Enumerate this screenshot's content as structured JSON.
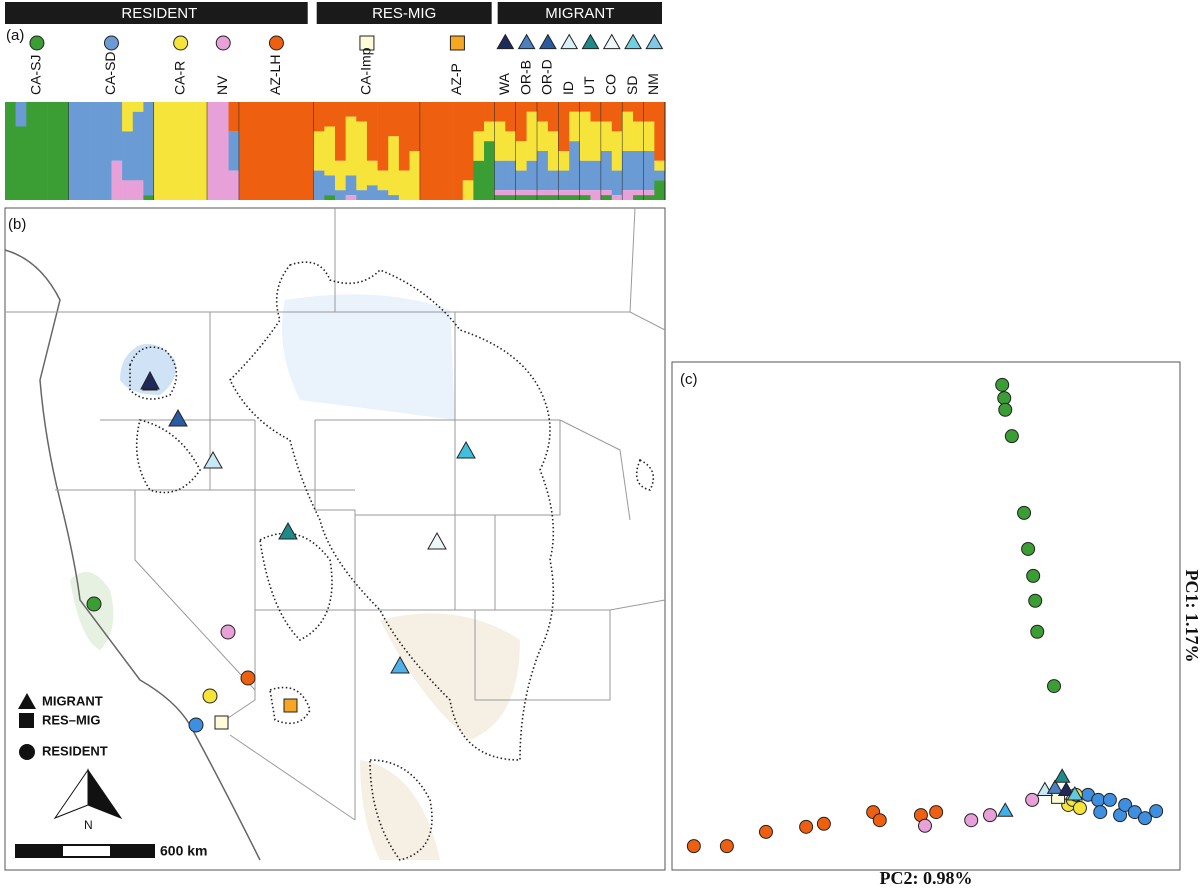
{
  "panel_a": {
    "label": "(a)",
    "cluster_colors": [
      "#ee6010",
      "#f7e43a",
      "#6a9bd4",
      "#e8a0d8",
      "#3a9e35"
    ],
    "groups": [
      {
        "name": "RESIDENT",
        "populations": [
          {
            "name": "CA-SJ",
            "shape": "circle",
            "color": "#3a9e35",
            "columns": [
              [
                0,
                0,
                0,
                0,
                1
              ],
              [
                0,
                0,
                0.25,
                0,
                0.75
              ],
              [
                0,
                0,
                0,
                0,
                1
              ],
              [
                0,
                0,
                0,
                0,
                1
              ],
              [
                0,
                0,
                0,
                0,
                1
              ],
              [
                0,
                0,
                0,
                0,
                1
              ]
            ]
          },
          {
            "name": "CA-SD",
            "shape": "circle",
            "color": "#6a9bd4",
            "columns": [
              [
                0,
                0,
                1,
                0,
                0
              ],
              [
                0,
                0,
                1,
                0,
                0
              ],
              [
                0,
                0,
                1,
                0,
                0
              ],
              [
                0,
                0,
                1,
                0,
                0
              ],
              [
                0,
                0,
                0.6,
                0.4,
                0
              ],
              [
                0,
                0.3,
                0.5,
                0.2,
                0
              ],
              [
                0,
                0.1,
                0.7,
                0.2,
                0
              ],
              [
                0,
                0,
                0.95,
                0,
                0.05
              ]
            ]
          },
          {
            "name": "CA-R",
            "shape": "circle",
            "color": "#f7e43a",
            "columns": [
              [
                0,
                1,
                0,
                0,
                0
              ],
              [
                0,
                1,
                0,
                0,
                0
              ],
              [
                0,
                1,
                0,
                0,
                0
              ],
              [
                0,
                1,
                0,
                0,
                0
              ],
              [
                0,
                1,
                0,
                0,
                0
              ]
            ]
          },
          {
            "name": "NV",
            "shape": "circle",
            "color": "#e8a0d8",
            "columns": [
              [
                0,
                0,
                0,
                1,
                0
              ],
              [
                0,
                0,
                0,
                1,
                0
              ],
              [
                0.3,
                0,
                0.4,
                0.3,
                0
              ]
            ]
          },
          {
            "name": "AZ-LH",
            "shape": "circle",
            "color": "#ee6010",
            "columns": [
              [
                1,
                0,
                0,
                0,
                0
              ],
              [
                1,
                0,
                0,
                0,
                0
              ],
              [
                1,
                0,
                0,
                0,
                0
              ],
              [
                1,
                0,
                0,
                0,
                0
              ],
              [
                1,
                0,
                0,
                0,
                0
              ],
              [
                1,
                0,
                0,
                0,
                0
              ],
              [
                1,
                0,
                0,
                0,
                0
              ]
            ]
          }
        ]
      },
      {
        "name": "RES-MIG",
        "populations": [
          {
            "name": "CA-Imp",
            "shape": "square",
            "color": "#fdfbd8",
            "columns": [
              [
                0.3,
                0.4,
                0.3,
                0,
                0
              ],
              [
                0.25,
                0.5,
                0.2,
                0,
                0.05
              ],
              [
                0.6,
                0.3,
                0.1,
                0,
                0
              ],
              [
                0.15,
                0.6,
                0.2,
                0.05,
                0
              ],
              [
                0.2,
                0.7,
                0.1,
                0,
                0
              ],
              [
                0.6,
                0.25,
                0.15,
                0,
                0
              ],
              [
                0.7,
                0.2,
                0.1,
                0,
                0
              ],
              [
                0.35,
                0.6,
                0.05,
                0,
                0
              ],
              [
                0.7,
                0.3,
                0,
                0,
                0
              ],
              [
                0.5,
                0.5,
                0,
                0,
                0
              ]
            ]
          },
          {
            "name": "AZ-P",
            "shape": "square",
            "color": "#f5a623",
            "columns": [
              [
                1,
                0,
                0,
                0,
                0
              ],
              [
                1,
                0,
                0,
                0,
                0
              ],
              [
                1,
                0,
                0,
                0,
                0
              ],
              [
                1,
                0,
                0,
                0,
                0
              ],
              [
                0.8,
                0.2,
                0,
                0,
                0
              ],
              [
                0.3,
                0.3,
                0,
                0,
                0.4
              ],
              [
                0.2,
                0.2,
                0,
                0,
                0.6
              ]
            ]
          }
        ]
      },
      {
        "name": "MIGRANT",
        "populations": [
          {
            "name": "WA",
            "shape": "triangle",
            "color": "#1f2a5c",
            "columns": [
              [
                0.2,
                0.4,
                0.3,
                0.05,
                0.05
              ],
              [
                0.3,
                0.3,
                0.3,
                0.05,
                0.05
              ]
            ]
          },
          {
            "name": "OR-B",
            "shape": "triangle",
            "color": "#4a7fc0",
            "columns": [
              [
                0.4,
                0.3,
                0.2,
                0.05,
                0.05
              ],
              [
                0.1,
                0.5,
                0.3,
                0.05,
                0.05
              ]
            ]
          },
          {
            "name": "OR-D",
            "shape": "triangle",
            "color": "#2a5aa0",
            "columns": [
              [
                0.2,
                0.3,
                0.4,
                0.05,
                0.05
              ],
              [
                0.3,
                0.4,
                0.2,
                0.05,
                0.05
              ]
            ]
          },
          {
            "name": "ID",
            "shape": "triangle",
            "color": "#d8f0f8",
            "columns": [
              [
                0.5,
                0.2,
                0.2,
                0.05,
                0.05
              ],
              [
                0.1,
                0.3,
                0.5,
                0.05,
                0.05
              ]
            ]
          },
          {
            "name": "UT",
            "shape": "triangle",
            "color": "#1f8a8a",
            "columns": [
              [
                0.1,
                0.5,
                0.3,
                0.05,
                0.05
              ],
              [
                0.2,
                0.4,
                0.3,
                0.1,
                0
              ]
            ]
          },
          {
            "name": "CO",
            "shape": "triangle",
            "color": "#eef6f8",
            "columns": [
              [
                0.2,
                0.3,
                0.4,
                0.05,
                0.05
              ],
              [
                0.3,
                0.4,
                0.25,
                0.05,
                0
              ]
            ]
          },
          {
            "name": "SD",
            "shape": "triangle",
            "color": "#70d0e0",
            "columns": [
              [
                0.1,
                0.4,
                0.4,
                0.1,
                0
              ],
              [
                0.2,
                0.3,
                0.4,
                0.05,
                0.05
              ]
            ]
          },
          {
            "name": "NM",
            "shape": "triangle",
            "color": "#80c8e8",
            "columns": [
              [
                0.2,
                0.3,
                0.4,
                0.05,
                0.05
              ],
              [
                0.6,
                0.1,
                0.1,
                0,
                0.2
              ]
            ]
          }
        ]
      }
    ]
  },
  "panel_b": {
    "label": "(b)",
    "legend": [
      "MIGRANT",
      "RES–MIG",
      "RESIDENT"
    ],
    "north": "N",
    "scale": "600 km"
  },
  "chart_data": {
    "type": "scatter",
    "label": "(c)",
    "x_label": "PC2: 0.98%",
    "y_label": "PC1: 1.17%",
    "xlim": [
      0,
      100
    ],
    "ylim": [
      0,
      100
    ],
    "series": [
      {
        "color": "#3a9e35",
        "shape": "circle",
        "x": [
          65,
          65.4,
          65.6,
          66.9,
          69.3,
          70.1,
          71.1,
          71.5,
          71.9,
          75.2
        ],
        "y": [
          95.5,
          92.9,
          90.6,
          85.4,
          70.3,
          63.2,
          57.9,
          53,
          46.9,
          36.2
        ]
      },
      {
        "color": "#ee6010",
        "shape": "circle",
        "x": [
          4.3,
          10.8,
          18.5,
          26.4,
          29.9,
          39.6,
          40.9,
          49,
          52
        ],
        "y": [
          4.7,
          4.7,
          7.5,
          8.5,
          9.1,
          11.4,
          9.8,
          10.8,
          11.4
        ]
      },
      {
        "color": "#e8a0d8",
        "shape": "circle",
        "x": [
          49.8,
          58.9,
          62.6,
          70.9
        ],
        "y": [
          8.7,
          9.8,
          10.8,
          13.8
        ]
      },
      {
        "color": "#3f8fe0",
        "shape": "circle",
        "x": [
          81.9,
          83.9,
          86.2,
          88.2,
          89.2,
          91.1,
          93.1,
          95.3,
          84.3
        ],
        "y": [
          14.8,
          13.8,
          13.8,
          10.8,
          12.8,
          11.4,
          10.2,
          11.6,
          11.4
        ]
      },
      {
        "color": "#f7e43a",
        "shape": "circle",
        "x": [
          78,
          78.9,
          79.5,
          80.3
        ],
        "y": [
          12.8,
          13.8,
          14.8,
          12.2
        ]
      },
      {
        "color": "#fdfbd8",
        "shape": "square",
        "x": [
          76
        ],
        "y": [
          14.4
        ]
      },
      {
        "color": "#40b0e8",
        "shape": "triangle",
        "x": [
          65.6
        ],
        "y": [
          11.6
        ]
      },
      {
        "color": "#c8e8f4",
        "shape": "triangle",
        "x": [
          73.4
        ],
        "y": [
          15.7
        ]
      },
      {
        "color": "#4a7fc0",
        "shape": "triangle",
        "x": [
          75.4
        ],
        "y": [
          16.1
        ]
      },
      {
        "color": "#1f8a8a",
        "shape": "triangle",
        "x": [
          76.8
        ],
        "y": [
          18.3
        ]
      },
      {
        "color": "#1f2a5c",
        "shape": "triangle",
        "x": [
          77.6
        ],
        "y": [
          15.7
        ]
      },
      {
        "color": "#60c8e0",
        "shape": "triangle",
        "x": [
          79.3
        ],
        "y": [
          14.8
        ]
      }
    ]
  }
}
